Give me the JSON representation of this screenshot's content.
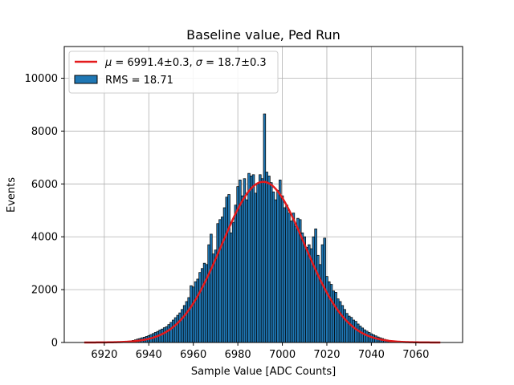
{
  "chart_data": {
    "type": "bar",
    "title": "Baseline value, Ped Run",
    "xlabel": "Sample Value [ADC Counts]",
    "ylabel": "Events",
    "xlim": [
      6902,
      7081
    ],
    "ylim": [
      0,
      11200
    ],
    "grid": true,
    "legend_position": "top-left",
    "xticks": [
      6920,
      6940,
      6960,
      6980,
      7000,
      7020,
      7040,
      7060
    ],
    "yticks": [
      0,
      2000,
      4000,
      6000,
      8000,
      10000
    ],
    "xtick_labels": [
      "6920",
      "6940",
      "6960",
      "6980",
      "7000",
      "7020",
      "7040",
      "7060"
    ],
    "ytick_labels": [
      "0",
      "2000",
      "4000",
      "6000",
      "8000",
      "10000"
    ],
    "series": [
      {
        "name": "RMS = 18.71",
        "kind": "histogram",
        "color": "#1f77b4",
        "edge_color": "#000000",
        "bin_width": 1,
        "x": [
          6930,
          6931,
          6932,
          6933,
          6934,
          6935,
          6936,
          6937,
          6938,
          6939,
          6940,
          6941,
          6942,
          6943,
          6944,
          6945,
          6946,
          6947,
          6948,
          6949,
          6950,
          6951,
          6952,
          6953,
          6954,
          6955,
          6956,
          6957,
          6958,
          6959,
          6960,
          6961,
          6962,
          6963,
          6964,
          6965,
          6966,
          6967,
          6968,
          6969,
          6970,
          6971,
          6972,
          6973,
          6974,
          6975,
          6976,
          6977,
          6978,
          6979,
          6980,
          6981,
          6982,
          6983,
          6984,
          6985,
          6986,
          6987,
          6988,
          6989,
          6990,
          6991,
          6992,
          6993,
          6994,
          6995,
          6996,
          6997,
          6998,
          6999,
          7000,
          7001,
          7002,
          7003,
          7004,
          7005,
          7006,
          7007,
          7008,
          7009,
          7010,
          7011,
          7012,
          7013,
          7014,
          7015,
          7016,
          7017,
          7018,
          7019,
          7020,
          7021,
          7022,
          7023,
          7024,
          7025,
          7026,
          7027,
          7028,
          7029,
          7030,
          7031,
          7032,
          7033,
          7034,
          7035,
          7036,
          7037,
          7038,
          7039,
          7040,
          7041,
          7042,
          7043,
          7044,
          7045,
          7046,
          7047,
          7048,
          7049,
          7050,
          7051,
          7052
        ],
        "values": [
          40,
          50,
          60,
          80,
          100,
          130,
          150,
          180,
          200,
          230,
          260,
          300,
          340,
          380,
          420,
          470,
          510,
          560,
          600,
          680,
          760,
          850,
          940,
          1030,
          1120,
          1250,
          1400,
          1550,
          1700,
          2150,
          2100,
          2300,
          2400,
          2650,
          2800,
          3000,
          2950,
          3700,
          4100,
          3350,
          3500,
          4500,
          4650,
          4750,
          5100,
          5500,
          5600,
          4150,
          4550,
          5200,
          5900,
          6150,
          5550,
          6200,
          5400,
          6400,
          6300,
          6350,
          5650,
          6000,
          6350,
          6200,
          8650,
          6450,
          6300,
          6050,
          5700,
          5400,
          5750,
          6150,
          5550,
          5100,
          5200,
          4900,
          4600,
          4900,
          4400,
          4700,
          4650,
          4150,
          4000,
          3600,
          3700,
          3550,
          4000,
          4300,
          3300,
          2950,
          3700,
          3950,
          2500,
          2300,
          2200,
          1950,
          1900,
          1650,
          1550,
          1400,
          1250,
          1100,
          1000,
          950,
          850,
          800,
          700,
          620,
          550,
          480,
          430,
          380,
          330,
          290,
          250,
          210,
          180,
          150,
          120,
          100,
          80,
          60,
          50,
          40,
          30
        ]
      },
      {
        "name": "μ = 6991.4±0.3, σ = 18.7±0.3",
        "kind": "gaussian_fit",
        "color": "#e41a1c",
        "mu": 6991.4,
        "sigma": 18.7,
        "amplitude": 6080,
        "x_range": [
          6911,
          7071
        ]
      }
    ]
  },
  "legend": {
    "fit_label_prefix": "μ",
    "fit_label_rest": " = 6991.4±0.3, ",
    "fit_label_sigma": "σ",
    "fit_label_tail": " = 18.7±0.3",
    "hist_label": "RMS = 18.71"
  }
}
